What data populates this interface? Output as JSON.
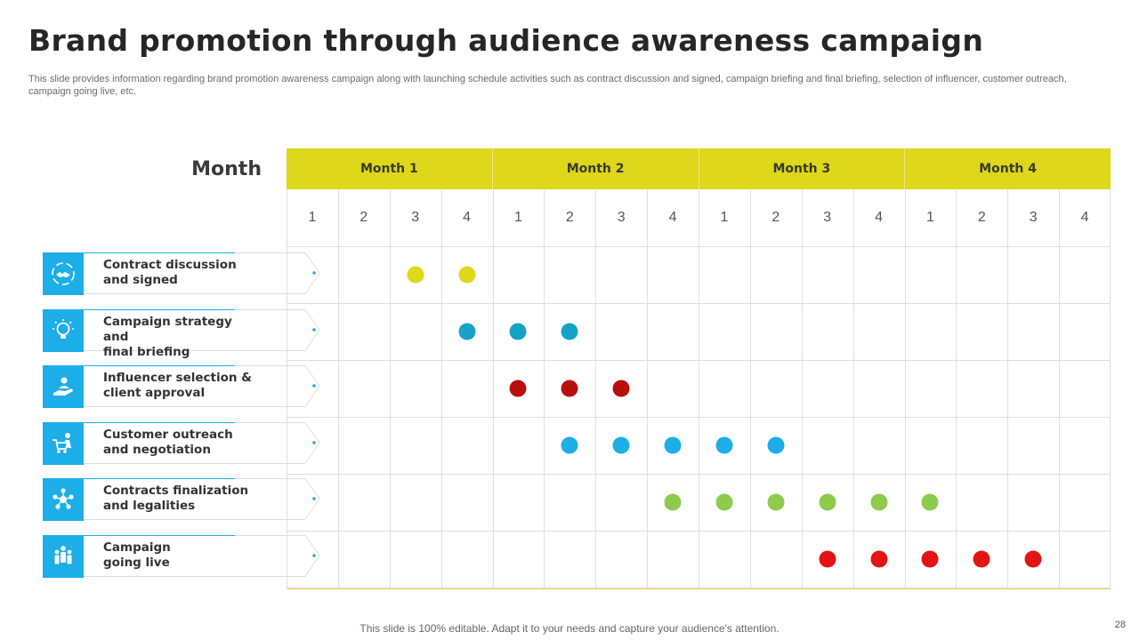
{
  "title": "Brand promotion through audience awareness campaign",
  "subtitle": "This slide provides information regarding brand promotion awareness campaign along with launching schedule activities such as contract discussion and signed, campaign briefing and final briefing, selection of influencer, customer outreach, campaign going live, etc.",
  "row_header": "Month",
  "months": [
    "Month 1",
    "Month 2",
    "Month 3",
    "Month 4"
  ],
  "weeks": [
    "1",
    "2",
    "3",
    "4",
    "1",
    "2",
    "3",
    "4",
    "1",
    "2",
    "3",
    "4",
    "1",
    "2",
    "3",
    "4"
  ],
  "activities": [
    {
      "line1": "Contract discussion",
      "line2": "and signed",
      "icon": "handshake-icon",
      "color": "#dfd71a",
      "weeks": [
        3,
        4
      ]
    },
    {
      "line1": "Campaign strategy and",
      "line2": "final briefing",
      "icon": "lightbulb-icon",
      "color": "#16a3c7",
      "weeks": [
        4,
        5,
        6
      ]
    },
    {
      "line1": "Influencer selection &",
      "line2": "client approval",
      "icon": "hand-person-icon",
      "color": "#b80e0e",
      "weeks": [
        5,
        6,
        7
      ]
    },
    {
      "line1": "Customer outreach",
      "line2": "and negotiation",
      "icon": "shopping-cart-person-icon",
      "color": "#1daee8",
      "weeks": [
        6,
        7,
        8,
        9,
        10
      ]
    },
    {
      "line1": "Contracts finalization",
      "line2": "and legalities",
      "icon": "team-network-icon",
      "color": "#8ecb4d",
      "weeks": [
        8,
        9,
        10,
        11,
        12,
        13
      ]
    },
    {
      "line1": "Campaign",
      "line2": "going live",
      "icon": "group-people-icon",
      "color": "#e31414",
      "weeks": [
        11,
        12,
        13,
        14,
        15
      ]
    }
  ],
  "footer": "This slide is 100% editable. Adapt it to your needs and capture your audience's attention.",
  "page_number": "28"
}
